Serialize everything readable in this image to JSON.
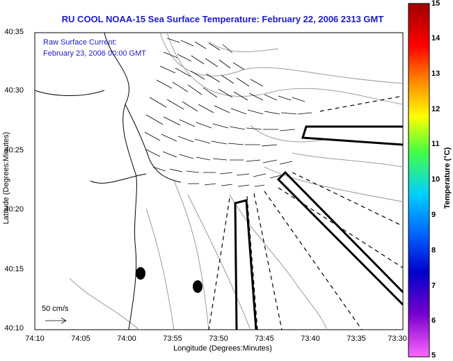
{
  "map": {
    "title": "RU COOL  NOAA-15  Sea Surface Temperature:  February 22, 2006 2313 GMT",
    "current_label_line1": "Raw Surface Current:",
    "current_label_line2": "February 23, 2006 00:00 GMT",
    "scale_label": "50 cm/s",
    "x_axis_title": "Longitude (Degrees:Minutes)",
    "y_axis_title": "Latitude (Degrees:Minutes)",
    "x_ticks": [
      "74:10",
      "74:05",
      "74:00",
      "73:55",
      "73:50",
      "73:45",
      "73:40",
      "73:35",
      "73:30"
    ],
    "y_ticks": [
      "40:35",
      "40:30",
      "40:25",
      "40:20",
      "40:15",
      "40:10"
    ]
  },
  "colorbar": {
    "title": "Temperature (°C)",
    "ticks": [
      "15",
      "14",
      "13",
      "12",
      "11",
      "10",
      "9",
      "8",
      "7",
      "6",
      "5"
    ],
    "colors": [
      "#a00000",
      "#ff0000",
      "#ff8800",
      "#ffff00",
      "#44ff44",
      "#00d0ff",
      "#0066ff",
      "#0000cc",
      "#7700cc",
      "#ff66ff"
    ]
  }
}
